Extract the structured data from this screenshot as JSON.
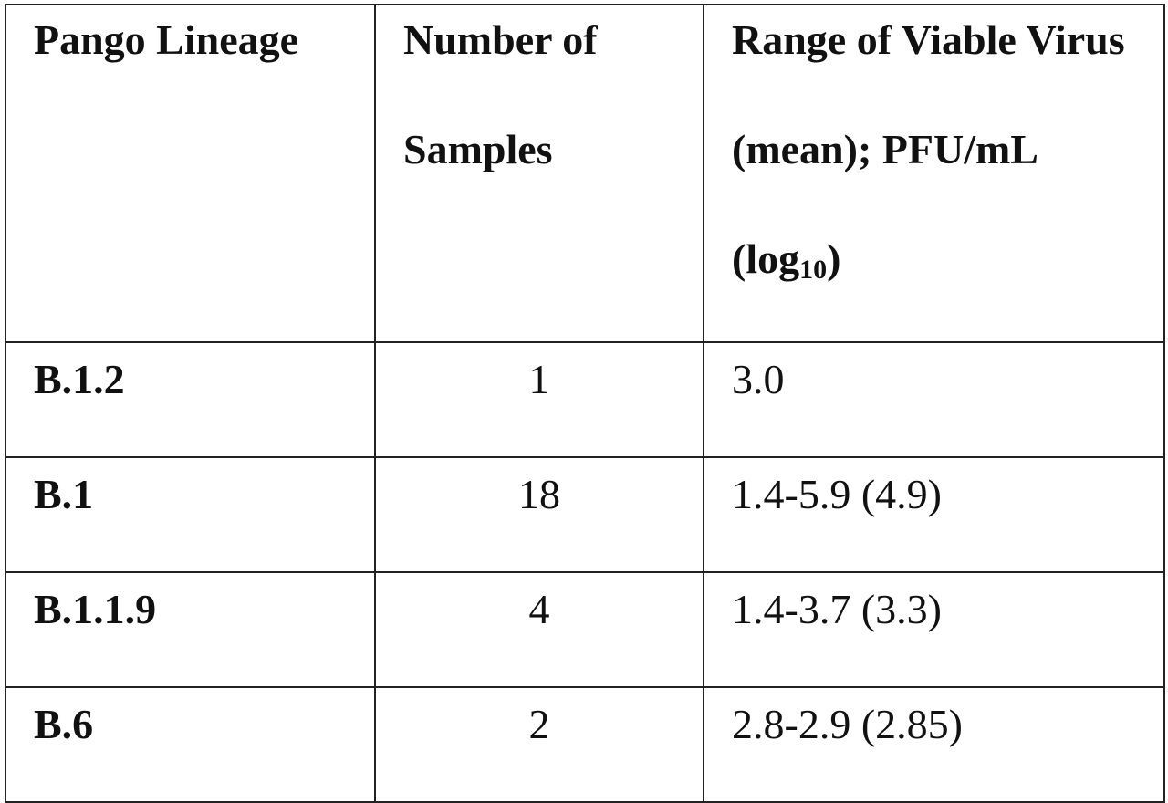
{
  "table": {
    "header": [
      "Pango Lineage",
      "Number of Samples",
      {
        "text": "Range of Viable Virus (mean); PFU/mL (log",
        "subscript": "10",
        "after": ")"
      }
    ],
    "rows": [
      [
        "B.1.2",
        1,
        "3.0"
      ],
      [
        "B.1",
        18,
        "1.4-5.9 (4.9)"
      ],
      [
        "B.1.1.9",
        4,
        "1.4-3.7 (3.3)"
      ],
      [
        "B.6",
        2,
        "2.8-2.9 (2.85)"
      ]
    ]
  }
}
